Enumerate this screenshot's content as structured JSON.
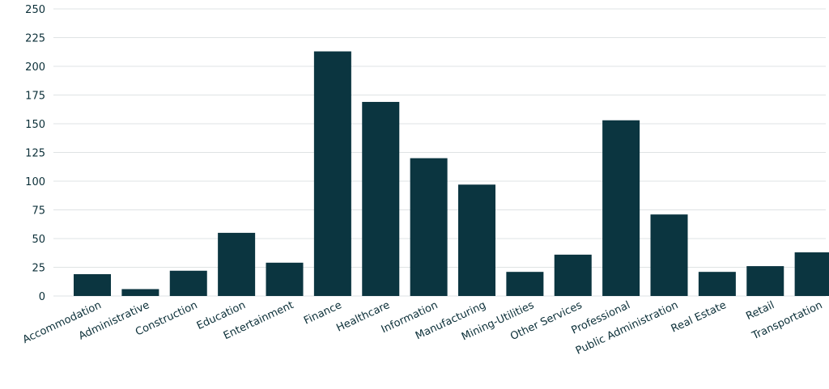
{
  "chart_data": {
    "type": "bar",
    "title": "",
    "xlabel": "",
    "ylabel": "",
    "ylim": [
      0,
      250
    ],
    "yticks": [
      0,
      25,
      50,
      75,
      100,
      125,
      150,
      175,
      200,
      225,
      250
    ],
    "grid": true,
    "bar_color": "#0b3540",
    "categories": [
      "Accommodation",
      "Administrative",
      "Construction",
      "Education",
      "Entertainment",
      "Finance",
      "Healthcare",
      "Information",
      "Manufacturing",
      "Mining-Utilities",
      "Other Services",
      "Professional",
      "Public Administration",
      "Real Estate",
      "Retail",
      "Transportation"
    ],
    "values": [
      19,
      6,
      22,
      55,
      29,
      213,
      169,
      120,
      97,
      21,
      36,
      153,
      71,
      21,
      26,
      38
    ]
  }
}
